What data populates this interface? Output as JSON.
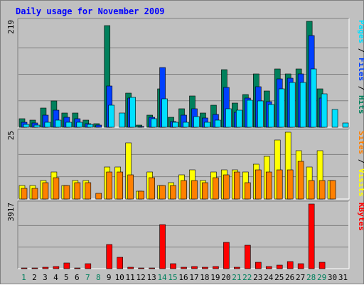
{
  "chart_data": {
    "type": "bar",
    "title": "Daily usage for November 2009",
    "categories": [
      "1",
      "2",
      "3",
      "4",
      "5",
      "6",
      "7",
      "8",
      "9",
      "10",
      "11",
      "12",
      "13",
      "14",
      "15",
      "16",
      "17",
      "18",
      "19",
      "20",
      "21",
      "22",
      "23",
      "24",
      "25",
      "26",
      "27",
      "28",
      "29",
      "30",
      "31"
    ],
    "weekend_days": [
      "1",
      "7",
      "8",
      "14",
      "15",
      "21",
      "22",
      "28",
      "29"
    ],
    "colors": {
      "title": "#0000ff",
      "hits": "#00805c",
      "files": "#0040ff",
      "pages": "#00e0ff",
      "visits": "#ffff00",
      "sites": "#ff8000",
      "kbytes": "#ff0000",
      "weekend_label": "#00805c",
      "weekday_label": "#000000"
    },
    "panels": [
      {
        "id": "top",
        "max_label": "219",
        "ymax": 219,
        "legend": [
          {
            "text": "Pages",
            "color": "#00e0ff"
          },
          {
            "text": " / ",
            "color": "#000000"
          },
          {
            "text": "Files",
            "color": "#0040ff"
          },
          {
            "text": " / ",
            "color": "#000000"
          },
          {
            "text": "Hits",
            "color": "#00805c"
          }
        ],
        "series": [
          {
            "name": "Hits",
            "color": "#00805c",
            "values": [
              18,
              14,
              40,
              55,
              30,
              30,
              15,
              7,
              210,
              0,
              70,
              4,
              25,
              80,
              20,
              38,
              65,
              30,
              45,
              119,
              50,
              68,
              110,
              75,
              120,
              110,
              121,
              219,
              80,
              0,
              0
            ]
          },
          {
            "name": "Files",
            "color": "#0040ff",
            "values": [
              10,
              9,
              25,
              35,
              20,
              18,
              7,
              5,
              85,
              0,
              60,
              2,
              20,
              123,
              12,
              25,
              38,
              19,
              26,
              82,
              31,
              60,
              84,
              53,
              100,
              101,
              110,
              189,
              60,
              0,
              0
            ]
          },
          {
            "name": "Pages",
            "color": "#00e0ff",
            "values": [
              6,
              5,
              10,
              15,
              11,
              10,
              6,
              0,
              45,
              30,
              61,
              0,
              18,
              59,
              10,
              11,
              22,
              11,
              15,
              38,
              36,
              56,
              54,
              47,
              80,
              93,
              92,
              120,
              69,
              37,
              9
            ]
          }
        ]
      },
      {
        "id": "middle",
        "max_label": "25",
        "ymax": 25,
        "legend": [
          {
            "text": "Sites",
            "color": "#ff8000"
          },
          {
            "text": " / ",
            "color": "#000000"
          },
          {
            "text": "Visits",
            "color": "#ffff00"
          }
        ],
        "series": [
          {
            "name": "Visits",
            "color": "#ffff00",
            "values": [
              5,
              5,
              7,
              10,
              5,
              7,
              7,
              0,
              12,
              12,
              21,
              3,
              10,
              5,
              6,
              9,
              11,
              7,
              10,
              11,
              11,
              10,
              13,
              16,
              22,
              25,
              18,
              12,
              18,
              7,
              0
            ]
          },
          {
            "name": "Sites",
            "color": "#ff8000",
            "values": [
              4,
              4,
              6,
              8,
              5,
              6,
              6,
              2,
              10,
              10,
              9,
              3,
              8,
              5,
              5,
              7,
              7,
              6,
              8,
              9,
              10,
              6,
              11,
              10,
              11,
              11,
              14,
              7,
              7,
              7,
              0
            ]
          }
        ]
      },
      {
        "id": "bottom",
        "max_label": "3917",
        "ymax": 3917,
        "legend": [
          {
            "text": "KBytes",
            "color": "#ff0000"
          }
        ],
        "series": [
          {
            "name": "KBytes",
            "color": "#ff0000",
            "values": [
              60,
              60,
              80,
              140,
              350,
              60,
              280,
              0,
              1450,
              700,
              70,
              40,
              40,
              2650,
              280,
              100,
              150,
              100,
              150,
              1580,
              100,
              1400,
              400,
              120,
              200,
              450,
              300,
              3917,
              400,
              0,
              0
            ]
          }
        ]
      }
    ]
  }
}
